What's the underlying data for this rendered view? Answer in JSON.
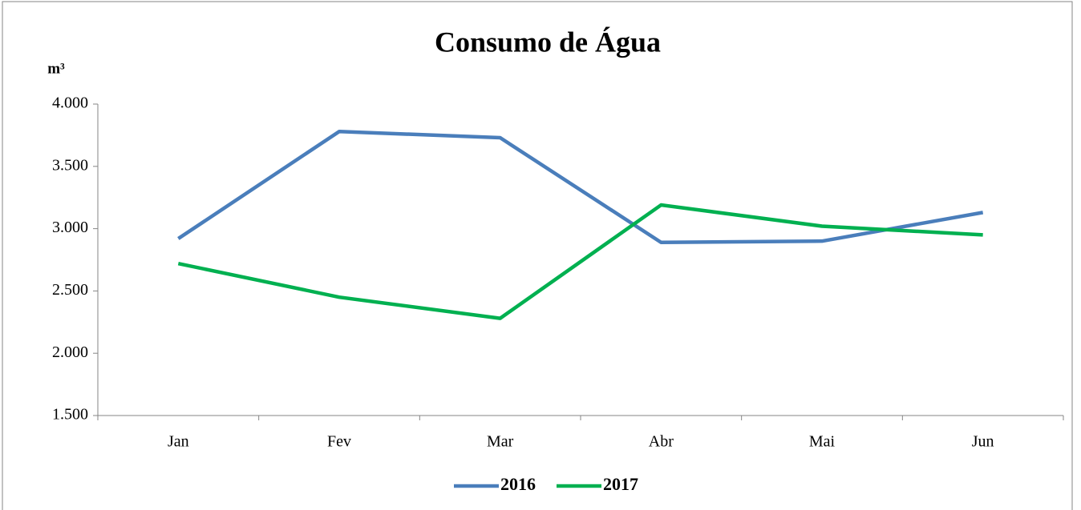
{
  "chart_data": {
    "type": "line",
    "title": "Consumo de Água",
    "y_label": "m³",
    "categories": [
      "Jan",
      "Fev",
      "Mar",
      "Abr",
      "Mai",
      "Jun"
    ],
    "series": [
      {
        "name": "2016",
        "color": "#4a7ebb",
        "values": [
          2920,
          3780,
          3730,
          2890,
          2900,
          3130
        ]
      },
      {
        "name": "2017",
        "color": "#00b050",
        "values": [
          2720,
          2450,
          2280,
          3190,
          3020,
          2950
        ]
      }
    ],
    "ylim": [
      1500,
      4000
    ],
    "yticks": [
      {
        "value": 1500,
        "label": "1.500"
      },
      {
        "value": 2000,
        "label": "2.000"
      },
      {
        "value": 2500,
        "label": "2.500"
      },
      {
        "value": 3000,
        "label": "3.000"
      },
      {
        "value": 3500,
        "label": "3.500"
      },
      {
        "value": 4000,
        "label": "4.000"
      }
    ],
    "grid": false,
    "legend": "bottom"
  }
}
